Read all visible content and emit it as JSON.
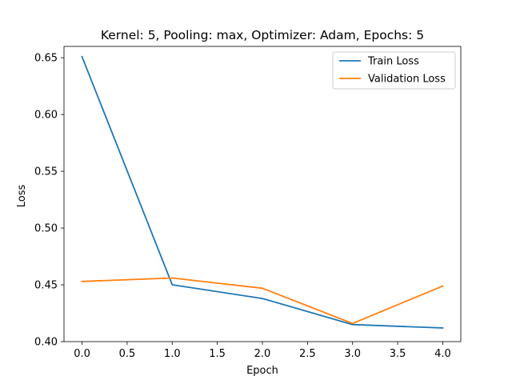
{
  "chart_data": {
    "type": "line",
    "title": "Kernel: 5, Pooling: max, Optimizer: Adam, Epochs: 5",
    "xlabel": "Epoch",
    "ylabel": "Loss",
    "x": [
      0,
      1,
      2,
      3,
      4
    ],
    "xlim": [
      -0.2,
      4.2
    ],
    "ylim": [
      0.4,
      0.66
    ],
    "xticks": [
      "0.0",
      "0.5",
      "1.0",
      "1.5",
      "2.0",
      "2.5",
      "3.0",
      "3.5",
      "4.0"
    ],
    "yticks": [
      "0.40",
      "0.45",
      "0.50",
      "0.55",
      "0.60",
      "0.65"
    ],
    "grid": false,
    "legend_position": "top-right",
    "series": [
      {
        "name": "Train Loss",
        "color": "#1f77b4",
        "values": [
          0.651,
          0.45,
          0.438,
          0.415,
          0.412
        ]
      },
      {
        "name": "Validation Loss",
        "color": "#ff7f0e",
        "values": [
          0.453,
          0.456,
          0.447,
          0.416,
          0.449
        ]
      }
    ]
  }
}
